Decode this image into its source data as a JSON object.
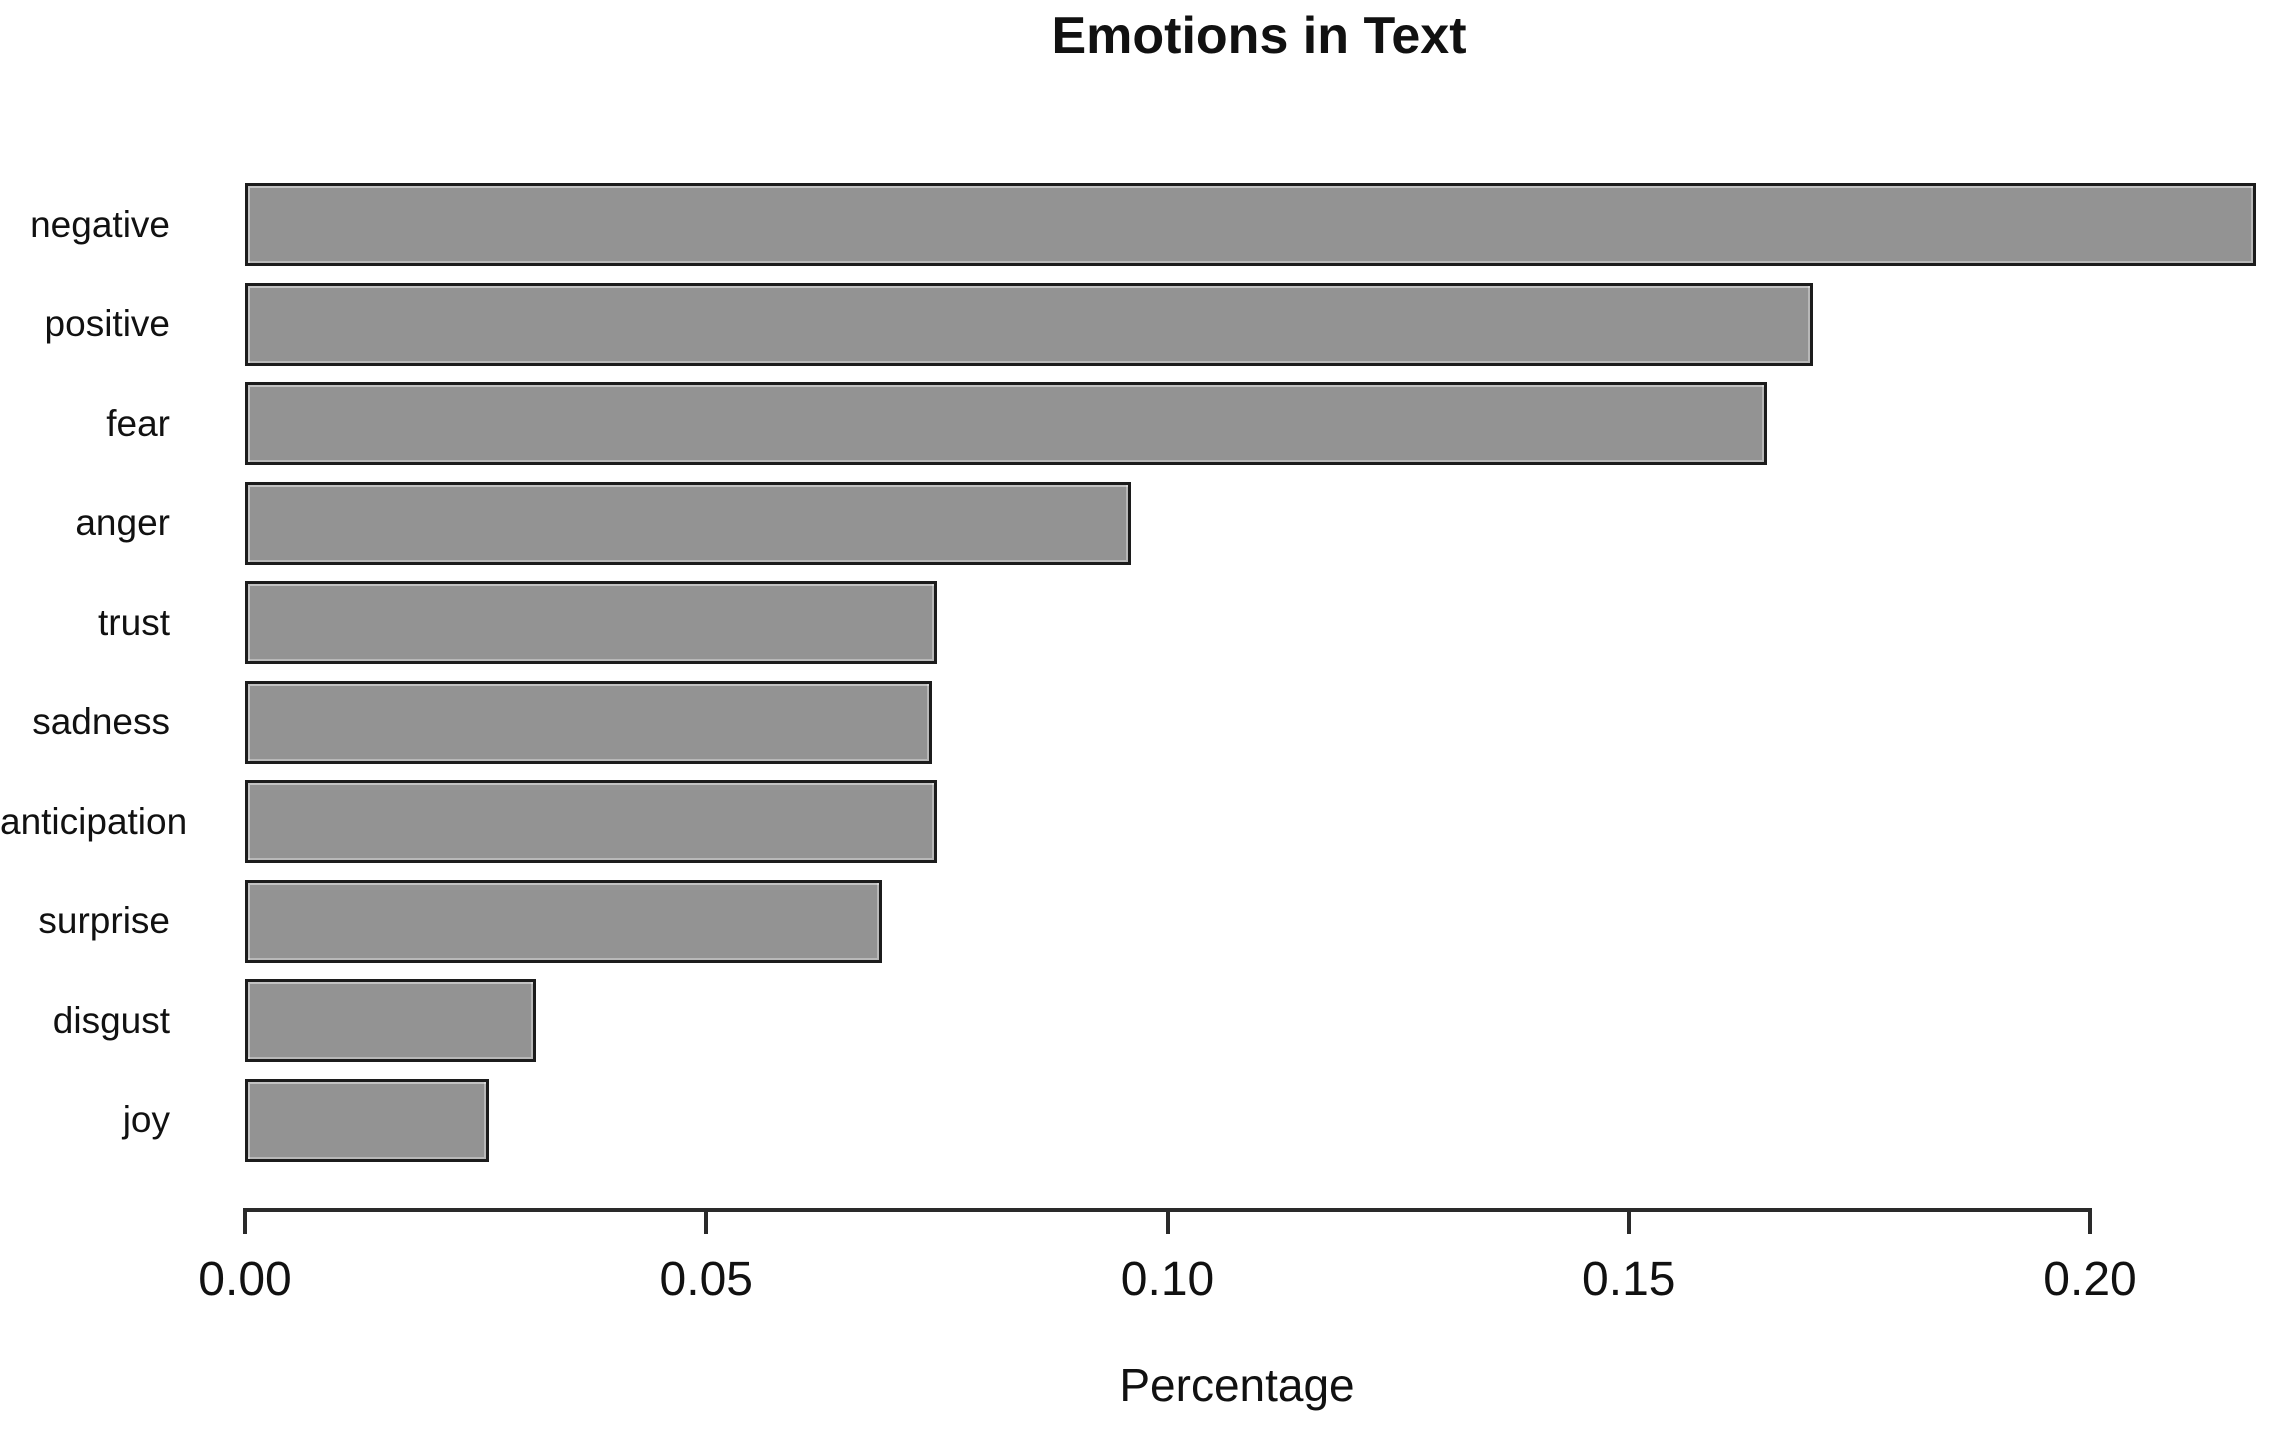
{
  "chart_data": {
    "type": "bar",
    "orientation": "horizontal",
    "title": "Emotions in Text",
    "xlabel": "Percentage",
    "ylabel": "",
    "categories": [
      "negative",
      "positive",
      "fear",
      "anger",
      "trust",
      "sadness",
      "anticipation",
      "surprise",
      "disgust",
      "joy"
    ],
    "values": [
      0.218,
      0.17,
      0.165,
      0.096,
      0.075,
      0.0745,
      0.075,
      0.069,
      0.0315,
      0.0265
    ],
    "x_ticks": [
      0.0,
      0.05,
      0.1,
      0.15,
      0.2
    ],
    "x_tick_labels": [
      "0.00",
      "0.05",
      "0.10",
      "0.15",
      "0.20"
    ],
    "xlim": [
      0,
      0.2205
    ],
    "grid": false,
    "legend_position": "none",
    "bar_color": "#939393",
    "bar_border_color": "#1c1c1c",
    "axis_color": "#2a2a2a",
    "text_color": "#111111",
    "background_color": "#ffffff"
  }
}
